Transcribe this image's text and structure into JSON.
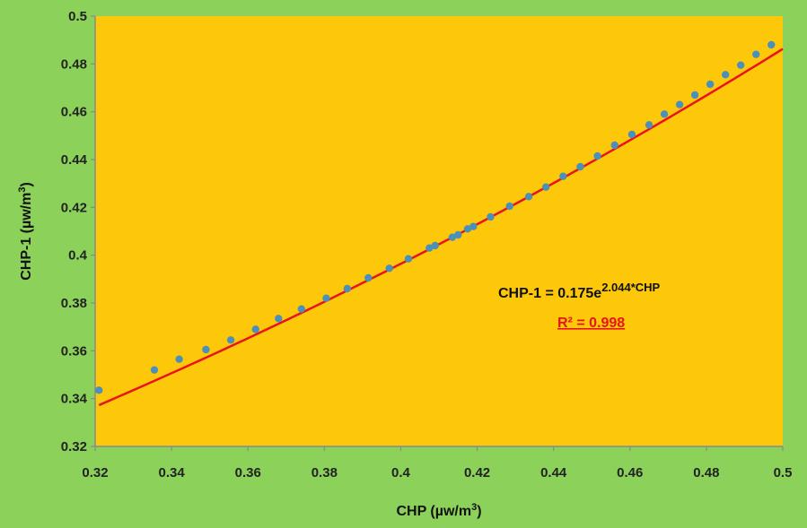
{
  "chart_data": {
    "type": "scatter",
    "xlabel": "CHP (µw/m",
    "xlabel_sup": "3",
    "xlabel_end": ")",
    "ylabel": "CHP-1 (µw/m",
    "ylabel_sup": "3",
    "ylabel_end": ")",
    "xlim": [
      0.32,
      0.5
    ],
    "ylim": [
      0.32,
      0.5
    ],
    "x_ticks": [
      "0.32",
      "0.34",
      "0.36",
      "0.38",
      "0.4",
      "0.42",
      "0.44",
      "0.46",
      "0.48",
      "0.5"
    ],
    "y_ticks": [
      "0.32",
      "0.34",
      "0.36",
      "0.38",
      "0.4",
      "0.42",
      "0.44",
      "0.46",
      "0.48",
      "0.5"
    ],
    "grid": false,
    "legend": "none",
    "series": [
      {
        "points": [
          [
            0.321,
            0.3435
          ],
          [
            0.3355,
            0.352
          ],
          [
            0.342,
            0.3565
          ],
          [
            0.349,
            0.3605
          ],
          [
            0.3555,
            0.3645
          ],
          [
            0.362,
            0.369
          ],
          [
            0.368,
            0.3735
          ],
          [
            0.374,
            0.3775
          ],
          [
            0.3805,
            0.382
          ],
          [
            0.386,
            0.386
          ],
          [
            0.3915,
            0.3905
          ],
          [
            0.397,
            0.3945
          ],
          [
            0.402,
            0.3985
          ],
          [
            0.4075,
            0.403
          ],
          [
            0.409,
            0.404
          ],
          [
            0.4135,
            0.4075
          ],
          [
            0.415,
            0.4085
          ],
          [
            0.4175,
            0.411
          ],
          [
            0.419,
            0.412
          ],
          [
            0.4235,
            0.416
          ],
          [
            0.4285,
            0.4205
          ],
          [
            0.4335,
            0.4245
          ],
          [
            0.438,
            0.4285
          ],
          [
            0.4425,
            0.433
          ],
          [
            0.447,
            0.437
          ],
          [
            0.4515,
            0.4415
          ],
          [
            0.456,
            0.446
          ],
          [
            0.4605,
            0.4505
          ],
          [
            0.465,
            0.4545
          ],
          [
            0.469,
            0.459
          ],
          [
            0.473,
            0.463
          ],
          [
            0.477,
            0.467
          ],
          [
            0.481,
            0.4715
          ],
          [
            0.485,
            0.4755
          ],
          [
            0.489,
            0.4795
          ],
          [
            0.493,
            0.484
          ],
          [
            0.497,
            0.488
          ]
        ]
      }
    ],
    "trendline": {
      "type": "exponential",
      "a": 0.175,
      "b": 2.044,
      "x_range": [
        0.321,
        0.5
      ],
      "equation_prefix": "CHP-1 = 0.175e",
      "equation_exponent": "2.044*CHP",
      "r2_label": "R² = 0.998"
    },
    "colors": {
      "page_background": "#8cd25a",
      "plot_background": "#fdc70a",
      "marker": "#4b90b8",
      "trendline": "#e8141c",
      "axis": "#8a8a8a"
    }
  }
}
